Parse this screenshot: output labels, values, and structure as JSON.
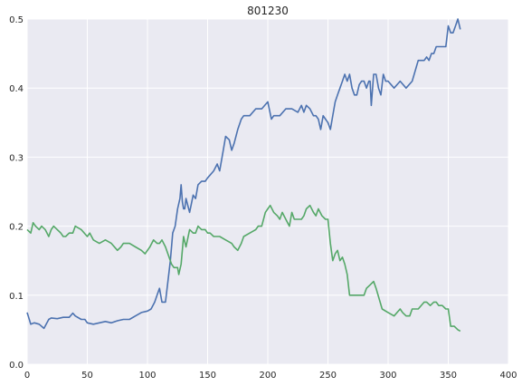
{
  "chart_data": {
    "type": "line",
    "title": "801230",
    "xlabel": "",
    "ylabel": "",
    "xlim": [
      0,
      400
    ],
    "ylim": [
      0,
      0.5
    ],
    "xticks": [
      "0",
      "50",
      "100",
      "150",
      "200",
      "250",
      "300",
      "350",
      "400"
    ],
    "yticks": [
      "0.0",
      "0.1",
      "0.2",
      "0.3",
      "0.4",
      "0.5"
    ],
    "grid": true,
    "legend": "none",
    "background_color": "#eaeaf2",
    "grid_color": "#ffffff",
    "series": [
      {
        "color": "#4c72b0",
        "x": [
          0,
          3,
          6,
          10,
          14,
          18,
          20,
          25,
          30,
          35,
          38,
          40,
          45,
          48,
          50,
          55,
          60,
          65,
          70,
          75,
          80,
          85,
          90,
          95,
          100,
          103,
          106,
          108,
          110,
          112,
          115,
          117,
          119,
          121,
          123,
          125,
          127,
          128,
          129,
          130,
          131,
          132,
          135,
          138,
          140,
          142,
          145,
          148,
          150,
          155,
          158,
          160,
          163,
          165,
          168,
          170,
          172,
          175,
          178,
          180,
          185,
          190,
          195,
          200,
          203,
          205,
          210,
          215,
          220,
          225,
          228,
          230,
          232,
          235,
          238,
          240,
          242,
          244,
          246,
          248,
          250,
          252,
          254,
          256,
          258,
          260,
          262,
          264,
          266,
          268,
          270,
          272,
          274,
          276,
          278,
          280,
          282,
          284,
          285,
          286,
          288,
          290,
          292,
          294,
          296,
          298,
          300,
          305,
          310,
          315,
          320,
          325,
          330,
          332,
          334,
          336,
          338,
          340,
          342,
          345,
          348,
          350,
          352,
          354,
          356,
          358,
          360
        ],
        "y": [
          0.075,
          0.058,
          0.06,
          0.058,
          0.052,
          0.065,
          0.067,
          0.066,
          0.068,
          0.068,
          0.074,
          0.07,
          0.065,
          0.065,
          0.06,
          0.058,
          0.06,
          0.062,
          0.06,
          0.063,
          0.065,
          0.065,
          0.07,
          0.075,
          0.077,
          0.08,
          0.09,
          0.1,
          0.11,
          0.09,
          0.09,
          0.12,
          0.15,
          0.19,
          0.2,
          0.225,
          0.24,
          0.26,
          0.235,
          0.225,
          0.225,
          0.24,
          0.22,
          0.245,
          0.24,
          0.26,
          0.265,
          0.265,
          0.27,
          0.28,
          0.29,
          0.28,
          0.31,
          0.33,
          0.325,
          0.31,
          0.32,
          0.34,
          0.355,
          0.36,
          0.36,
          0.37,
          0.37,
          0.38,
          0.355,
          0.36,
          0.36,
          0.37,
          0.37,
          0.365,
          0.375,
          0.365,
          0.375,
          0.37,
          0.36,
          0.36,
          0.355,
          0.34,
          0.36,
          0.355,
          0.35,
          0.34,
          0.36,
          0.38,
          0.39,
          0.4,
          0.41,
          0.42,
          0.41,
          0.42,
          0.4,
          0.39,
          0.39,
          0.405,
          0.41,
          0.41,
          0.4,
          0.41,
          0.41,
          0.375,
          0.42,
          0.42,
          0.4,
          0.39,
          0.42,
          0.41,
          0.41,
          0.4,
          0.41,
          0.4,
          0.41,
          0.44,
          0.44,
          0.445,
          0.44,
          0.45,
          0.45,
          0.46,
          0.46,
          0.46,
          0.46,
          0.49,
          0.48,
          0.48,
          0.49,
          0.5,
          0.485
        ],
        "name": ""
      },
      {
        "color": "#55a868",
        "x": [
          0,
          3,
          5,
          7,
          10,
          12,
          15,
          18,
          20,
          22,
          25,
          28,
          30,
          32,
          35,
          38,
          40,
          45,
          50,
          52,
          55,
          60,
          65,
          70,
          75,
          78,
          80,
          85,
          90,
          95,
          98,
          100,
          102,
          105,
          108,
          110,
          112,
          115,
          118,
          120,
          122,
          125,
          126,
          128,
          130,
          132,
          135,
          138,
          140,
          142,
          145,
          148,
          150,
          152,
          155,
          158,
          160,
          165,
          170,
          172,
          175,
          178,
          180,
          185,
          190,
          192,
          195,
          198,
          200,
          202,
          205,
          208,
          210,
          212,
          215,
          218,
          220,
          222,
          225,
          228,
          230,
          232,
          235,
          238,
          240,
          242,
          245,
          248,
          250,
          252,
          254,
          256,
          258,
          260,
          262,
          264,
          266,
          268,
          270,
          275,
          280,
          282,
          285,
          288,
          290,
          295,
          300,
          305,
          310,
          312,
          315,
          318,
          320,
          325,
          330,
          332,
          335,
          338,
          340,
          342,
          345,
          348,
          350,
          352,
          355,
          358,
          360
        ],
        "y": [
          0.195,
          0.19,
          0.205,
          0.2,
          0.195,
          0.2,
          0.195,
          0.185,
          0.195,
          0.2,
          0.195,
          0.19,
          0.185,
          0.185,
          0.19,
          0.19,
          0.2,
          0.195,
          0.185,
          0.19,
          0.18,
          0.175,
          0.18,
          0.175,
          0.165,
          0.17,
          0.175,
          0.175,
          0.17,
          0.165,
          0.16,
          0.165,
          0.17,
          0.18,
          0.175,
          0.175,
          0.18,
          0.17,
          0.155,
          0.145,
          0.14,
          0.14,
          0.13,
          0.145,
          0.185,
          0.17,
          0.195,
          0.19,
          0.19,
          0.2,
          0.195,
          0.195,
          0.19,
          0.19,
          0.185,
          0.185,
          0.185,
          0.18,
          0.175,
          0.17,
          0.165,
          0.175,
          0.185,
          0.19,
          0.195,
          0.2,
          0.2,
          0.22,
          0.225,
          0.23,
          0.22,
          0.215,
          0.21,
          0.22,
          0.21,
          0.2,
          0.22,
          0.21,
          0.21,
          0.21,
          0.215,
          0.225,
          0.23,
          0.22,
          0.215,
          0.225,
          0.215,
          0.21,
          0.21,
          0.175,
          0.15,
          0.16,
          0.165,
          0.15,
          0.155,
          0.145,
          0.13,
          0.1,
          0.1,
          0.1,
          0.1,
          0.11,
          0.115,
          0.12,
          0.11,
          0.08,
          0.075,
          0.07,
          0.08,
          0.075,
          0.07,
          0.07,
          0.08,
          0.08,
          0.09,
          0.09,
          0.085,
          0.09,
          0.09,
          0.085,
          0.085,
          0.08,
          0.08,
          0.055,
          0.055,
          0.05,
          0.048
        ],
        "name": ""
      }
    ]
  }
}
